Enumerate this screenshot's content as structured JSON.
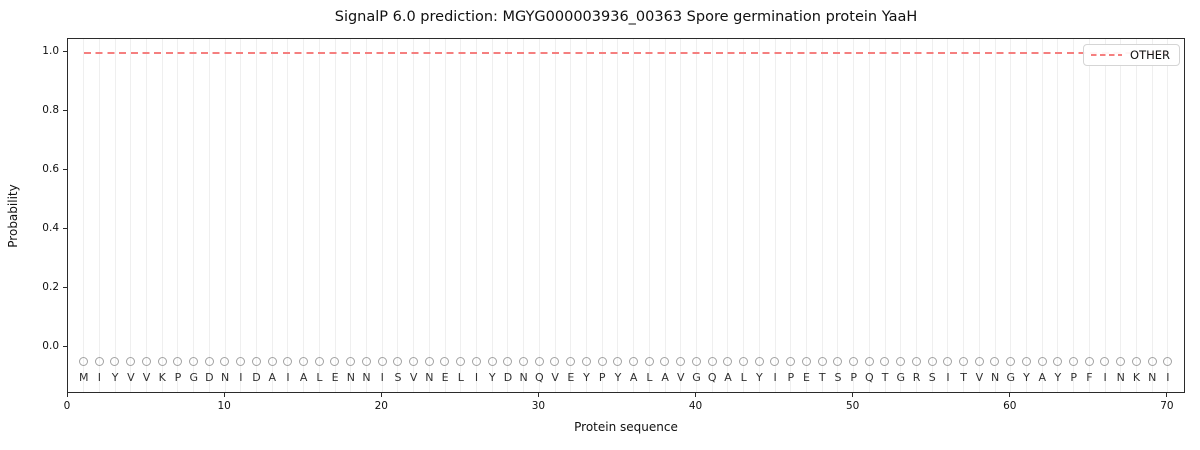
{
  "chart_data": {
    "type": "line",
    "title": "SignalP 6.0 prediction: MGYG000003936_00363 Spore germination protein YaaH",
    "xlabel": "Protein sequence",
    "ylabel": "Probability",
    "x_ticks": [
      0,
      10,
      20,
      30,
      40,
      50,
      60,
      70
    ],
    "y_ticks": [
      "0.0",
      "0.2",
      "0.4",
      "0.6",
      "0.8",
      "1.0"
    ],
    "xlim": [
      0,
      71.15
    ],
    "ylim": [
      -0.156,
      1.047
    ],
    "grid": {
      "vertical_gridline_per_residue": true,
      "horizontal": false,
      "color": "#efefef"
    },
    "sequence": "MIYVVKPGDNIDAIALENNISVNELIYDNQVEYPYALAVGQALYIPETSPQTGRSITVNGYAYPFINKNI",
    "sequence_length": 70,
    "series": [
      {
        "name": "OTHER",
        "color": "#f57f7f",
        "linestyle": "dashed",
        "x": [
          1,
          70
        ],
        "y": [
          1.0,
          1.0
        ],
        "constant_value": 1.0
      }
    ],
    "residue_markers": {
      "symbol": "open-circle",
      "color": "#a3a3a3",
      "y": -0.045
    },
    "legend": {
      "position": "upper right",
      "entries": [
        {
          "label": "OTHER",
          "color": "#f57f7f",
          "linestyle": "dashed"
        }
      ]
    }
  }
}
